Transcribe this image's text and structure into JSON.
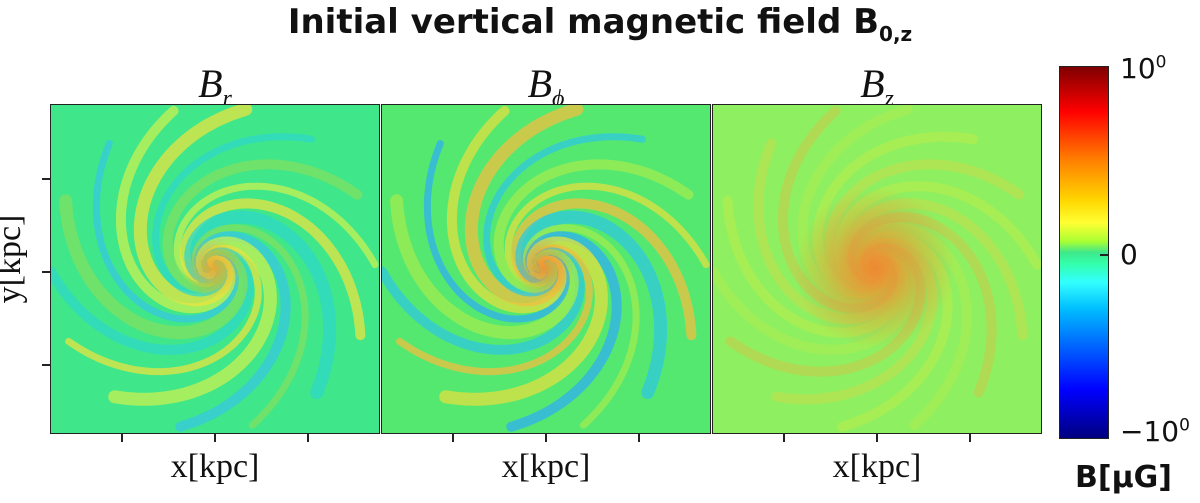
{
  "chart_data": {
    "type": "heatmap",
    "title": "Initial vertical magnetic field B",
    "title_subscript": "0,z",
    "panels": [
      {
        "title": "B",
        "title_subscript": "r",
        "xlabel": "x[kpc]"
      },
      {
        "title": "B",
        "title_subscript": "ϕ",
        "xlabel": "x[kpc]"
      },
      {
        "title": "B",
        "title_subscript": "z",
        "xlabel": "x[kpc]"
      }
    ],
    "ylabel": "y[kpc]",
    "colorbar": {
      "label": "B[μG]",
      "ticks": [
        {
          "label": "10",
          "sup": "0"
        },
        {
          "label": "0",
          "sup": ""
        },
        {
          "label": "−10",
          "sup": "0"
        }
      ],
      "colormap": "jet",
      "range": [
        -1,
        1
      ],
      "scale": "symlog"
    },
    "grid": false
  }
}
